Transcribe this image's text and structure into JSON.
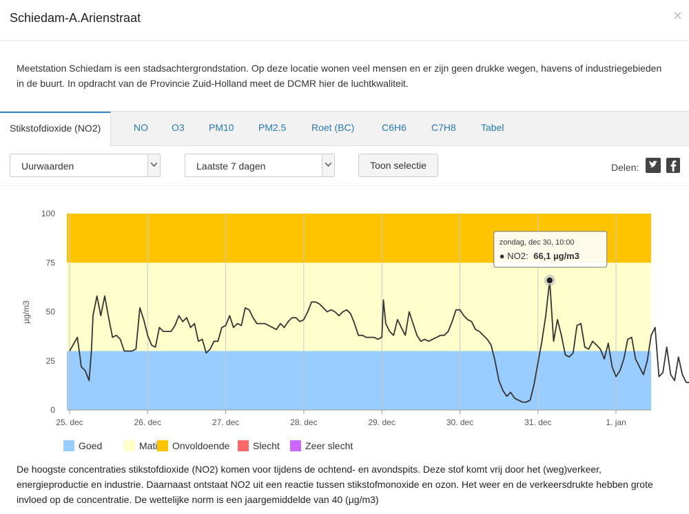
{
  "header": {
    "title": "Schiedam-A.Arienstraat",
    "close": "×"
  },
  "intro": "Meetstation Schiedam is een stadsachtergrondstation. Op deze locatie wonen veel mensen en er zijn geen drukke wegen, havens of industriegebieden in de buurt. In opdracht van de Provincie Zuid-Holland meet de DCMR hier de luchtkwaliteit.",
  "tabs": [
    "Stikstofdioxide (NO2)",
    "NO",
    "O3",
    "PM10",
    "PM2.5",
    "Roet (BC)",
    "C6H6",
    "C7H8",
    "Tabel"
  ],
  "controls": {
    "interval": "Uurwaarden",
    "period": "Laatste 7 dagen",
    "button": "Toon selectie",
    "share_label": "Delen:",
    "share_icons": [
      "twitter-icon",
      "facebook-icon"
    ]
  },
  "chart_data": {
    "type": "line",
    "ylabel": "µg/m3",
    "ylim": [
      0,
      100
    ],
    "yticks": [
      0,
      25,
      50,
      75,
      100
    ],
    "xticks": [
      "25. dec",
      "26. dec",
      "27. dec",
      "28. dec",
      "29. dec",
      "30. dec",
      "31. dec",
      "1. jan"
    ],
    "bands": [
      {
        "name": "Goed",
        "from": 0,
        "to": 30,
        "color": "#99ccff"
      },
      {
        "name": "Matig",
        "from": 30,
        "to": 75,
        "color": "#ffffcc"
      },
      {
        "name": "Onvoldoende",
        "from": 75,
        "to": 100,
        "color": "#ffc400"
      }
    ],
    "legend": [
      {
        "name": "Goed",
        "color": "#99ccff"
      },
      {
        "name": "Matig",
        "color": "#ffffcc"
      },
      {
        "name": "Onvoldoende",
        "color": "#ffc400"
      },
      {
        "name": "Slecht",
        "color": "#ff6666"
      },
      {
        "name": "Zeer slecht",
        "color": "#cc66ff"
      }
    ],
    "series": [
      {
        "name": "NO2",
        "color": "#333333",
        "points": [
          [
            0,
            30
          ],
          [
            0.1,
            37
          ],
          [
            0.15,
            22
          ],
          [
            0.2,
            20
          ],
          [
            0.25,
            15
          ],
          [
            0.28,
            30
          ],
          [
            0.3,
            48
          ],
          [
            0.35,
            58
          ],
          [
            0.4,
            48
          ],
          [
            0.45,
            58
          ],
          [
            0.5,
            47
          ],
          [
            0.55,
            37
          ],
          [
            0.6,
            38
          ],
          [
            0.65,
            36
          ],
          [
            0.7,
            30
          ],
          [
            0.8,
            30
          ],
          [
            0.85,
            31
          ],
          [
            0.9,
            52
          ],
          [
            0.95,
            46
          ],
          [
            1.0,
            38
          ],
          [
            1.05,
            33
          ],
          [
            1.1,
            32
          ],
          [
            1.15,
            42
          ],
          [
            1.2,
            40
          ],
          [
            1.3,
            40
          ],
          [
            1.35,
            43
          ],
          [
            1.4,
            48
          ],
          [
            1.45,
            45
          ],
          [
            1.5,
            47
          ],
          [
            1.55,
            42
          ],
          [
            1.6,
            44
          ],
          [
            1.65,
            35
          ],
          [
            1.7,
            36
          ],
          [
            1.75,
            29
          ],
          [
            1.8,
            31
          ],
          [
            1.85,
            35
          ],
          [
            1.9,
            35
          ],
          [
            1.95,
            42
          ],
          [
            2.0,
            43
          ],
          [
            2.05,
            48
          ],
          [
            2.1,
            42
          ],
          [
            2.15,
            44
          ],
          [
            2.2,
            43
          ],
          [
            2.25,
            52
          ],
          [
            2.3,
            51
          ],
          [
            2.35,
            47
          ],
          [
            2.4,
            44
          ],
          [
            2.5,
            44
          ],
          [
            2.6,
            42
          ],
          [
            2.65,
            41
          ],
          [
            2.7,
            44
          ],
          [
            2.75,
            42
          ],
          [
            2.8,
            45
          ],
          [
            2.85,
            47
          ],
          [
            2.9,
            47
          ],
          [
            2.95,
            45
          ],
          [
            3.0,
            46
          ],
          [
            3.05,
            50
          ],
          [
            3.1,
            55
          ],
          [
            3.15,
            55
          ],
          [
            3.2,
            54
          ],
          [
            3.25,
            52
          ],
          [
            3.3,
            50
          ],
          [
            3.35,
            51
          ],
          [
            3.4,
            50
          ],
          [
            3.45,
            48
          ],
          [
            3.5,
            50
          ],
          [
            3.55,
            51
          ],
          [
            3.6,
            49
          ],
          [
            3.65,
            44
          ],
          [
            3.7,
            38
          ],
          [
            3.75,
            38
          ],
          [
            3.8,
            37
          ],
          [
            3.85,
            37
          ],
          [
            3.9,
            37
          ],
          [
            3.95,
            36
          ],
          [
            4.0,
            37
          ],
          [
            4.02,
            56
          ],
          [
            4.05,
            44
          ],
          [
            4.1,
            40
          ],
          [
            4.15,
            38
          ],
          [
            4.2,
            46
          ],
          [
            4.25,
            42
          ],
          [
            4.3,
            38
          ],
          [
            4.35,
            50
          ],
          [
            4.4,
            44
          ],
          [
            4.45,
            38
          ],
          [
            4.5,
            35
          ],
          [
            4.55,
            36
          ],
          [
            4.6,
            35
          ],
          [
            4.65,
            36
          ],
          [
            4.7,
            37
          ],
          [
            4.75,
            38
          ],
          [
            4.8,
            38
          ],
          [
            4.85,
            40
          ],
          [
            4.9,
            45
          ],
          [
            4.95,
            51
          ],
          [
            5.0,
            51
          ],
          [
            5.05,
            48
          ],
          [
            5.1,
            46
          ],
          [
            5.15,
            45
          ],
          [
            5.2,
            41
          ],
          [
            5.25,
            40
          ],
          [
            5.3,
            38
          ],
          [
            5.35,
            36
          ],
          [
            5.4,
            33
          ],
          [
            5.45,
            25
          ],
          [
            5.5,
            15
          ],
          [
            5.55,
            10
          ],
          [
            5.6,
            7
          ],
          [
            5.65,
            9
          ],
          [
            5.7,
            6
          ],
          [
            5.75,
            5
          ],
          [
            5.8,
            4
          ],
          [
            5.85,
            4
          ],
          [
            5.9,
            5
          ],
          [
            5.95,
            13
          ],
          [
            6.0,
            24
          ],
          [
            6.05,
            35
          ],
          [
            6.1,
            48
          ],
          [
            6.15,
            66
          ],
          [
            6.2,
            35
          ],
          [
            6.25,
            46
          ],
          [
            6.3,
            38
          ],
          [
            6.35,
            28
          ],
          [
            6.4,
            27
          ],
          [
            6.45,
            29
          ],
          [
            6.5,
            43
          ],
          [
            6.55,
            44
          ],
          [
            6.6,
            32
          ],
          [
            6.65,
            31
          ],
          [
            6.7,
            35
          ],
          [
            6.75,
            33
          ],
          [
            6.8,
            31
          ],
          [
            6.85,
            26
          ],
          [
            6.9,
            34
          ],
          [
            6.95,
            22
          ],
          [
            7.0,
            17
          ],
          [
            7.05,
            20
          ],
          [
            7.1,
            26
          ],
          [
            7.15,
            36
          ],
          [
            7.2,
            37
          ],
          [
            7.25,
            26
          ],
          [
            7.3,
            22
          ],
          [
            7.35,
            18
          ],
          [
            7.4,
            25
          ],
          [
            7.45,
            38
          ],
          [
            7.5,
            42
          ],
          [
            7.55,
            17
          ],
          [
            7.6,
            19
          ],
          [
            7.65,
            32
          ],
          [
            7.7,
            18
          ],
          [
            7.75,
            15
          ],
          [
            7.8,
            27
          ],
          [
            7.85,
            18
          ],
          [
            7.9,
            14
          ],
          [
            7.95,
            14
          ],
          [
            8.0,
            14
          ],
          [
            8.05,
            12
          ],
          [
            8.1,
            9
          ],
          [
            8.15,
            12
          ],
          [
            8.2,
            18
          ],
          [
            8.25,
            24
          ],
          [
            8.3,
            22
          ],
          [
            8.35,
            14
          ]
        ]
      }
    ],
    "tooltip": {
      "date": "zondag, dec 30, 10:00",
      "series": "NO2:",
      "value": "66,1 µg/m3",
      "x": 6.15,
      "y": 66
    }
  },
  "footer": "De hoogste concentraties stikstofdioxide (NO2) komen voor tijdens de ochtend- en avondspits. Deze stof komt vrij door het (weg)verkeer, energieproductie en industrie. Daarnaast ontstaat NO2 uit een reactie tussen stikstofmonoxide en ozon. Het weer en de verkeersdrukte hebben grote invloed op de concentratie. De wettelijke norm is een jaargemiddelde van 40 (µg/m3)"
}
